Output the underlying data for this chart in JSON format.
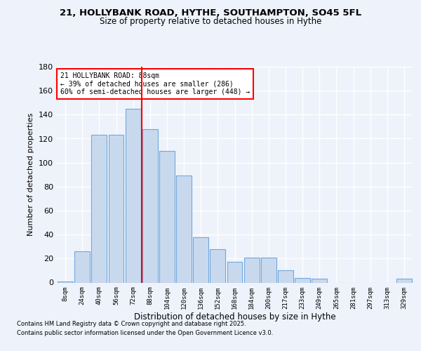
{
  "title1": "21, HOLLYBANK ROAD, HYTHE, SOUTHAMPTON, SO45 5FL",
  "title2": "Size of property relative to detached houses in Hythe",
  "xlabel": "Distribution of detached houses by size in Hythe",
  "ylabel": "Number of detached properties",
  "categories": [
    "8sqm",
    "24sqm",
    "40sqm",
    "56sqm",
    "72sqm",
    "88sqm",
    "104sqm",
    "120sqm",
    "136sqm",
    "152sqm",
    "168sqm",
    "184sqm",
    "200sqm",
    "217sqm",
    "233sqm",
    "249sqm",
    "265sqm",
    "281sqm",
    "297sqm",
    "313sqm",
    "329sqm"
  ],
  "values": [
    1,
    26,
    123,
    123,
    145,
    128,
    110,
    89,
    38,
    28,
    17,
    21,
    21,
    10,
    4,
    3,
    0,
    0,
    0,
    0,
    3
  ],
  "bar_color": "#c9d9ed",
  "bar_edge_color": "#6fa8dc",
  "vline_index": 5,
  "vline_color": "red",
  "annotation_title": "21 HOLLYBANK ROAD: 88sqm",
  "annotation_line1": "← 39% of detached houses are smaller (286)",
  "annotation_line2": "60% of semi-detached houses are larger (448) →",
  "annotation_box_color": "white",
  "annotation_box_edge": "red",
  "ylim": [
    0,
    180
  ],
  "yticks": [
    0,
    20,
    40,
    60,
    80,
    100,
    120,
    140,
    160,
    180
  ],
  "footer1": "Contains HM Land Registry data © Crown copyright and database right 2025.",
  "footer2": "Contains public sector information licensed under the Open Government Licence v3.0.",
  "bg_color": "#eef2fb",
  "grid_color": "#ffffff"
}
